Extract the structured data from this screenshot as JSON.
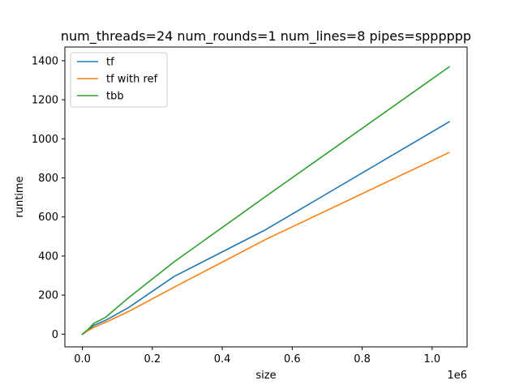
{
  "chart_data": {
    "type": "line",
    "title": "num_threads=24 num_rounds=1 num_lines=8 pipes=spppppp",
    "xlabel": "size",
    "ylabel": "runtime",
    "x_offset_label": "1e6",
    "xlim": [
      -50000,
      1100000
    ],
    "ylim": [
      -65,
      1470
    ],
    "x_ticks": [
      0,
      200000,
      400000,
      600000,
      800000,
      1000000
    ],
    "x_tick_labels": [
      "0.0",
      "0.2",
      "0.4",
      "0.6",
      "0.8",
      "1.0"
    ],
    "y_ticks": [
      0,
      200,
      400,
      600,
      800,
      1000,
      1200,
      1400
    ],
    "y_tick_labels": [
      "0",
      "200",
      "400",
      "600",
      "800",
      "1000",
      "1200",
      "1400"
    ],
    "legend_position": "top-left",
    "grid": false,
    "x": [
      1,
      16384,
      32768,
      65536,
      131072,
      262144,
      524288,
      1048576
    ],
    "series": [
      {
        "name": "tf",
        "color": "#1f77b4",
        "values": [
          0,
          20,
          45,
          70,
          135,
          295,
          535,
          1087
        ]
      },
      {
        "name": "tf with ref",
        "color": "#ff7f0e",
        "values": [
          0,
          18,
          35,
          60,
          115,
          240,
          485,
          930
        ]
      },
      {
        "name": "tbb",
        "color": "#2ca02c",
        "values": [
          0,
          25,
          55,
          85,
          185,
          370,
          705,
          1368
        ]
      }
    ]
  }
}
